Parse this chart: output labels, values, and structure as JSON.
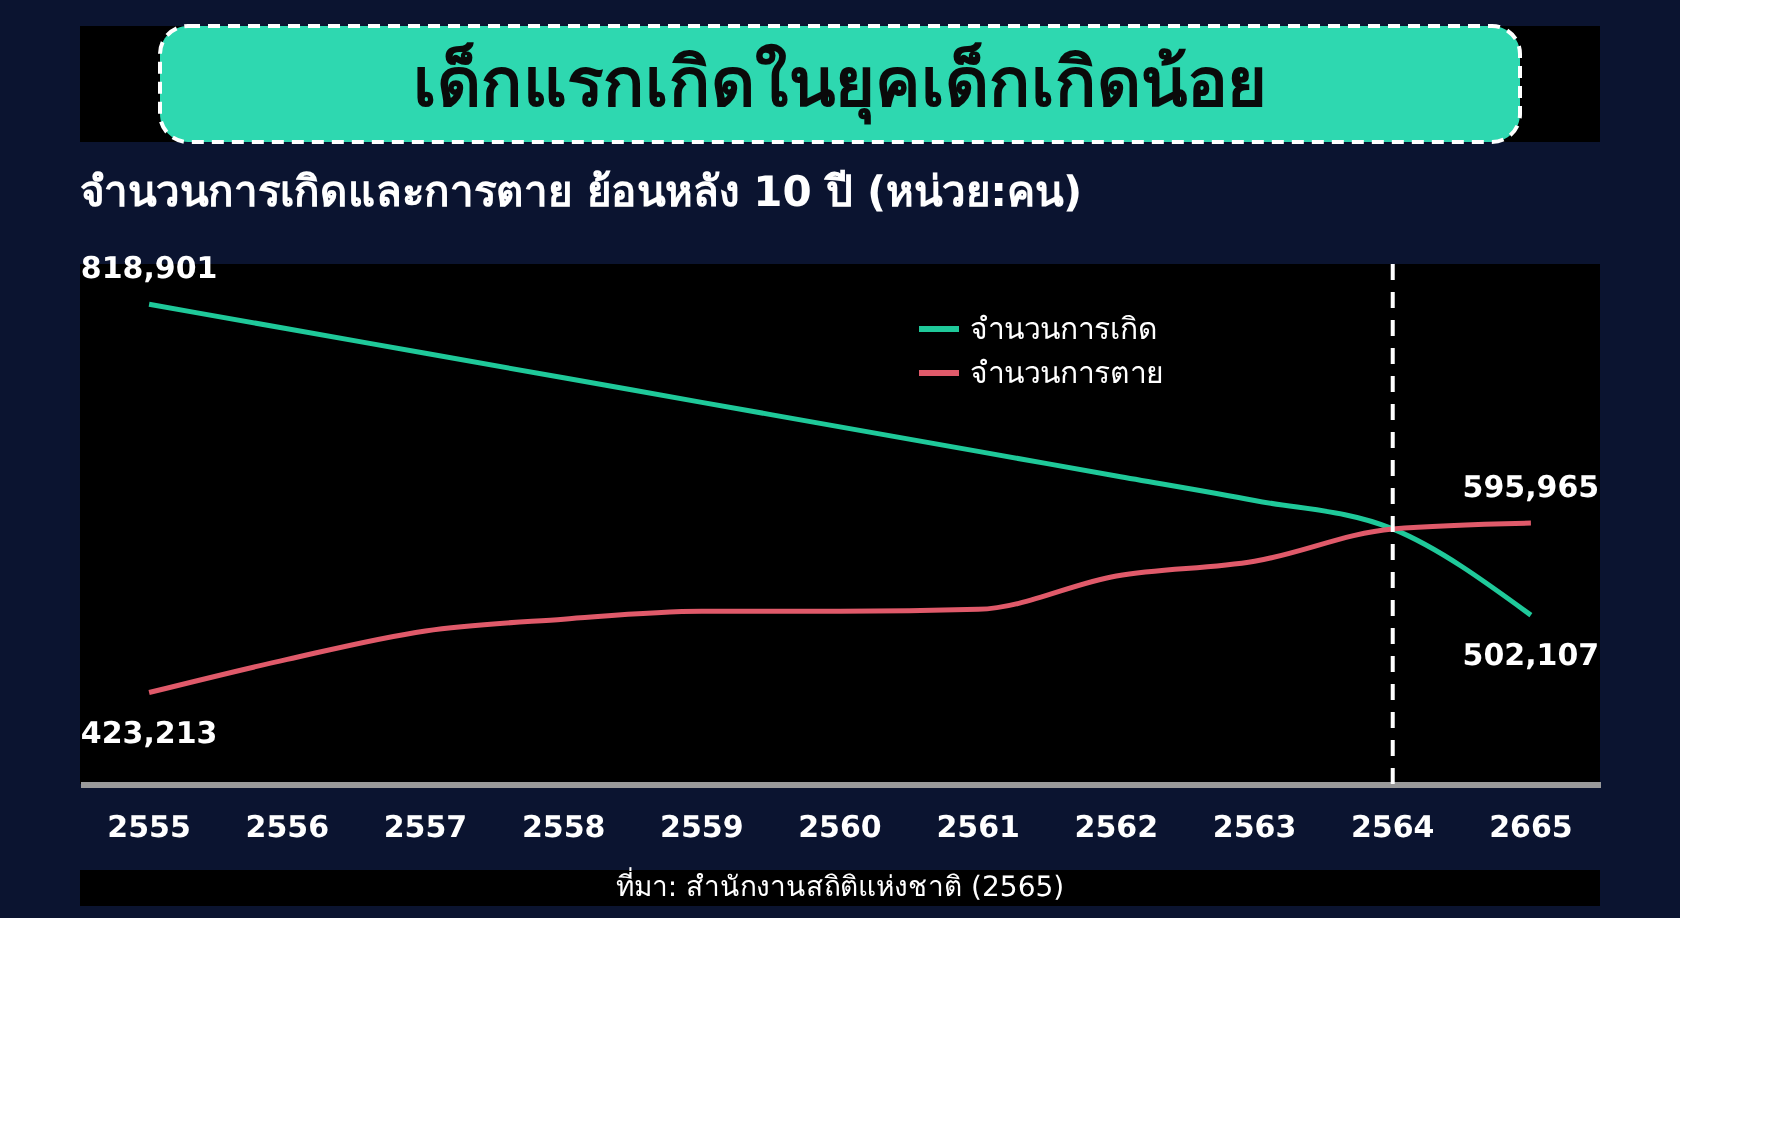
{
  "chart_data": {
    "type": "line",
    "title": "เด็กแรกเกิดในยุคเด็กเกิดน้อย",
    "subtitle": "จำนวนการเกิดและการตาย ย้อนหลัง 10 ปี (หน่วย:คน)",
    "categories": [
      "2555",
      "2556",
      "2557",
      "2558",
      "2559",
      "2560",
      "2561",
      "2562",
      "2563",
      "2564",
      "2665"
    ],
    "ylim": [
      330000,
      860000
    ],
    "series": [
      {
        "name": "จำนวนการเกิด",
        "color": "#1fc99a",
        "values": [
          818901,
          794000,
          769000,
          744000,
          719000,
          694000,
          669000,
          644000,
          619000,
          590000,
          502107
        ],
        "value_labels": [
          "818,901",
          null,
          null,
          null,
          null,
          null,
          null,
          null,
          null,
          null,
          "502,107"
        ]
      },
      {
        "name": "จำนวนการตาย",
        "color": "#e05a6a",
        "values": [
          423213,
          457000,
          486000,
          498000,
          506000,
          506000,
          508000,
          542000,
          557000,
          590000,
          595965
        ],
        "value_labels": [
          "423,213",
          null,
          null,
          null,
          null,
          null,
          null,
          null,
          null,
          null,
          "595,965"
        ]
      }
    ],
    "ref_lines": [
      {
        "axis": "x",
        "value": "2564",
        "color": "#ffffff",
        "line_style": "dashed"
      }
    ],
    "annotations": [
      "ที่มา: สำนักงานสถิติแห่งชาติ (2565)"
    ],
    "legend": "top right",
    "tick_labels": "x",
    "grid": false,
    "marker": "none",
    "line_style": "solid"
  }
}
